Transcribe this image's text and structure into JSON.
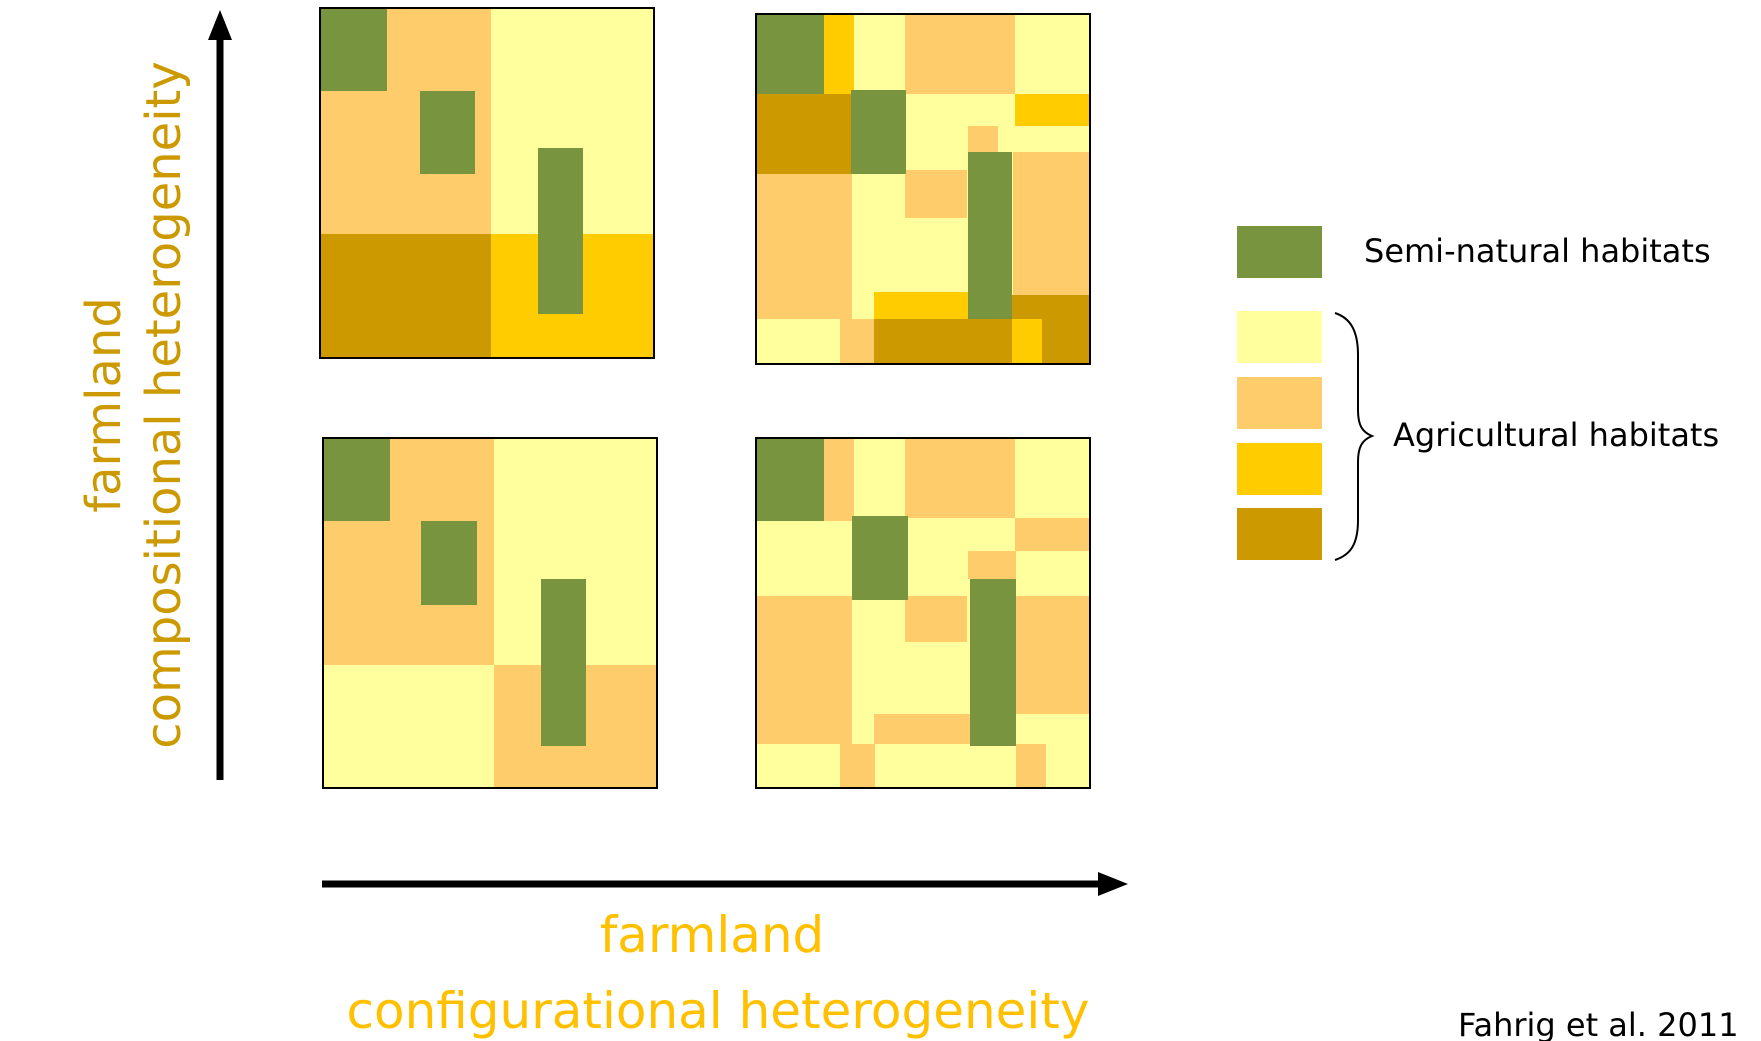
{
  "colors": {
    "semi_natural": "#78943f",
    "agri_pale": "#ffff9e",
    "agri_orange": "#ffcc6b",
    "agri_yellow": "#ffcc00",
    "agri_brown": "#cc9900",
    "axis_label": "#cc9900",
    "x_axis_label": "#ffc000",
    "arrow": "#000000"
  },
  "axes": {
    "y_label_line1": "farmland",
    "y_label_line2": "compositional heterogeneity",
    "x_label_line1": "farmland",
    "x_label_line2": "configurational heterogeneity"
  },
  "legend": {
    "semi_natural_label": "Semi-natural habitats",
    "agricultural_label": "Agricultural habitats"
  },
  "citation": "Fahrig et al. 2011"
}
